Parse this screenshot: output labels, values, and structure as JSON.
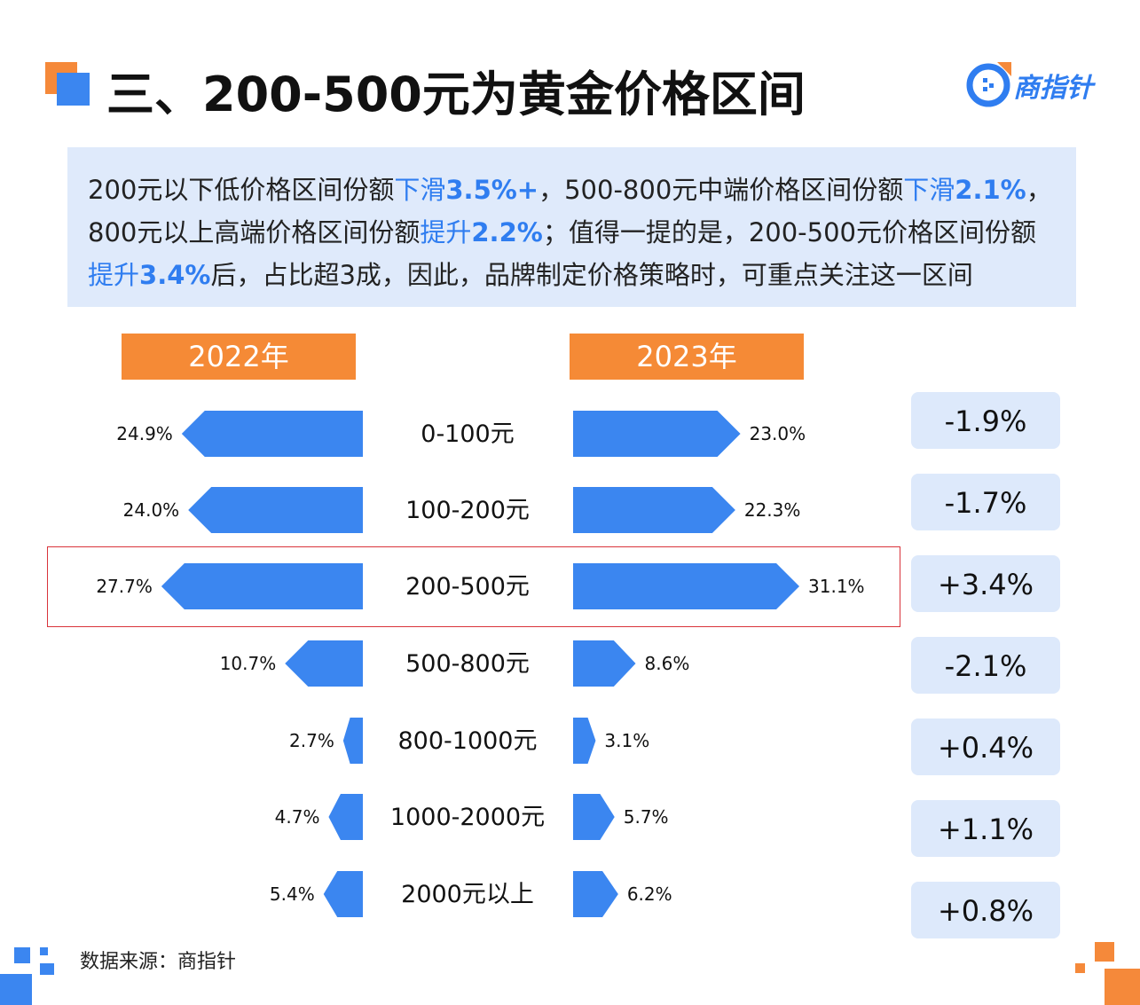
{
  "title": "三、200-500元为黄金价格区间",
  "logo": {
    "text": "商指针",
    "icon": "compass-logo-icon"
  },
  "summary": {
    "line1": [
      {
        "t": "200元以下低价格区间份额",
        "s": "n"
      },
      {
        "t": "下滑",
        "s": "hl"
      },
      {
        "t": "3.5%+",
        "s": "hlb"
      },
      {
        "t": "，500-800元中端价格区间份额",
        "s": "n"
      },
      {
        "t": "下滑",
        "s": "hl"
      },
      {
        "t": "2.1%",
        "s": "hlb"
      },
      {
        "t": "，",
        "s": "n"
      }
    ],
    "line2": [
      {
        "t": "800元以上高端价格区间份额",
        "s": "n"
      },
      {
        "t": "提升",
        "s": "hl"
      },
      {
        "t": "2.2%",
        "s": "hlb"
      },
      {
        "t": "；值得一提的是，200-500元价格区间份额",
        "s": "n"
      }
    ],
    "line3": [
      {
        "t": "提升",
        "s": "hl"
      },
      {
        "t": "3.4%",
        "s": "hlb"
      },
      {
        "t": "后，占比超3成，因此，品牌制定价格策略时，可重点关注这一区间",
        "s": "n"
      }
    ]
  },
  "chart_data": {
    "type": "bar",
    "categories": [
      "0-100元",
      "100-200元",
      "200-500元",
      "500-800元",
      "800-1000元",
      "1000-2000元",
      "2000元以上"
    ],
    "series": [
      {
        "name": "2022年",
        "values": [
          24.9,
          24.0,
          27.7,
          10.7,
          2.7,
          4.7,
          5.4
        ],
        "labels": [
          "24.9%",
          "24.0%",
          "27.7%",
          "10.7%",
          "2.7%",
          "4.7%",
          "5.4%"
        ]
      },
      {
        "name": "2023年",
        "values": [
          23.0,
          22.3,
          31.1,
          8.6,
          3.1,
          5.7,
          6.2
        ],
        "labels": [
          "23.0%",
          "22.3%",
          "31.1%",
          "8.6%",
          "3.1%",
          "5.7%",
          "6.2%"
        ]
      }
    ],
    "changes": [
      "-1.9%",
      "-1.7%",
      "+3.4%",
      "-2.1%",
      "+0.4%",
      "+1.1%",
      "+0.8%"
    ],
    "highlighted_category": "200-500元",
    "colors": {
      "bar": "#3b86f0",
      "tab": "#f58a36",
      "change_bg": "#dde9fb",
      "highlight_border": "#d9343b"
    }
  },
  "source": "数据来源：商指针"
}
